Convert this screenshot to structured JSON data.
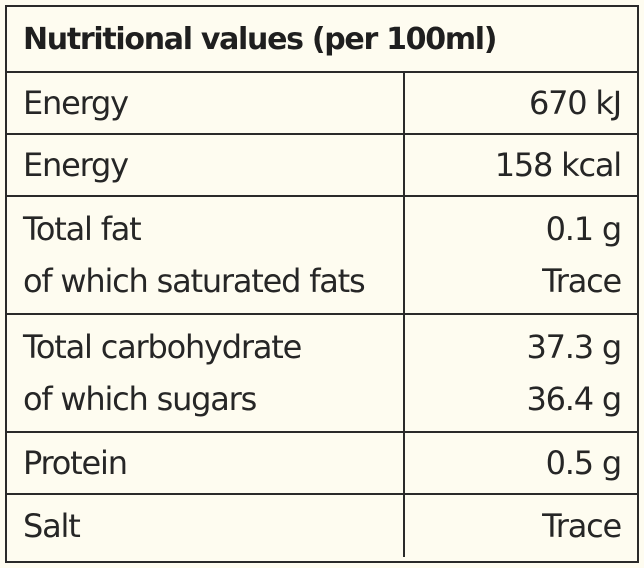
{
  "table": {
    "title": "Nutritional values (per 100ml)",
    "rows": [
      {
        "labels": [
          "Energy"
        ],
        "values": [
          "670 kJ"
        ]
      },
      {
        "labels": [
          "Energy"
        ],
        "values": [
          "158 kcal"
        ]
      },
      {
        "labels": [
          "Total fat",
          "of which saturated fats"
        ],
        "values": [
          "0.1 g",
          "Trace"
        ]
      },
      {
        "labels": [
          "Total carbohydrate",
          "of which sugars"
        ],
        "values": [
          "37.3 g",
          "36.4 g"
        ]
      },
      {
        "labels": [
          "Protein"
        ],
        "values": [
          "0.5 g"
        ]
      },
      {
        "labels": [
          "Salt"
        ],
        "values": [
          "Trace"
        ]
      }
    ]
  },
  "colors": {
    "background": "#fefcf0",
    "border": "#2a2a2a",
    "text": "#262626"
  }
}
